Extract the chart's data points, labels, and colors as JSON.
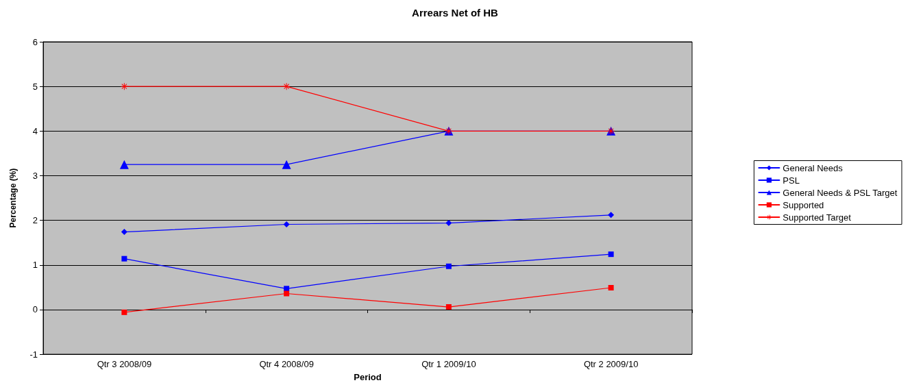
{
  "chart_data": {
    "type": "line",
    "title": "Arrears Net of HB",
    "xlabel": "Period",
    "ylabel": "Percentage (%)",
    "categories": [
      "Qtr 3 2008/09",
      "Qtr 4 2008/09",
      "Qtr 1 2009/10",
      "Qtr 2 2009/10"
    ],
    "series": [
      {
        "name": "General Needs",
        "color": "#0000ff",
        "marker": "diamond",
        "values": [
          1.74,
          1.91,
          1.94,
          2.12
        ]
      },
      {
        "name": "PSL",
        "color": "#0000ff",
        "marker": "square",
        "values": [
          1.14,
          0.47,
          0.97,
          1.24
        ]
      },
      {
        "name": "General Needs & PSL Target",
        "color": "#0000ff",
        "marker": "triangle",
        "values": [
          3.25,
          3.25,
          4,
          4
        ]
      },
      {
        "name": "Supported",
        "color": "#ff0000",
        "marker": "square",
        "values": [
          -0.06,
          0.36,
          0.06,
          0.49
        ]
      },
      {
        "name": "Supported Target",
        "color": "#ff0000",
        "marker": "star",
        "values": [
          5,
          5,
          4,
          4
        ]
      }
    ],
    "ylim": [
      -1,
      6
    ],
    "yticks": [
      -1,
      0,
      1,
      2,
      3,
      4,
      5,
      6
    ],
    "grid": "y",
    "legend": "right",
    "line_style": "solid"
  }
}
